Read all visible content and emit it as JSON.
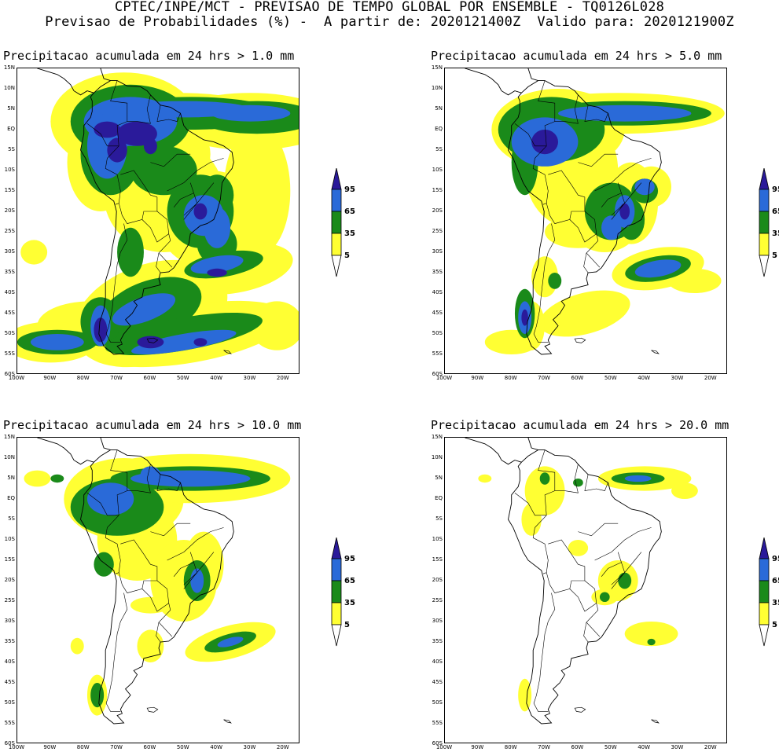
{
  "header": {
    "line1": "CPTEC/INPE/MCT - PREVISAO DE TEMPO GLOBAL POR ENSEMBLE - TQ0126L028",
    "line2": "Previsao de Probabilidades (%) -  A partir de: 2020121400Z  Valido para: 2020121900Z"
  },
  "colors": {
    "p5": "#ffff33",
    "p35": "#1a8a1a",
    "p65": "#2a6ad8",
    "p95": "#2a1a9a",
    "land_outline": "#000000"
  },
  "colorbar": {
    "levels": [
      "5",
      "35",
      "65",
      "95"
    ]
  },
  "axes": {
    "lat_labels": [
      "15N",
      "10N",
      "5N",
      "EQ",
      "5S",
      "10S",
      "15S",
      "20S",
      "25S",
      "30S",
      "35S",
      "40S",
      "45S",
      "50S",
      "55S",
      "60S"
    ],
    "lon_labels": [
      "100W",
      "90W",
      "80W",
      "70W",
      "60W",
      "50W",
      "40W",
      "30W",
      "20W"
    ]
  },
  "panels": [
    {
      "title": "Precipitacao acumulada em 24 hrs > 1.0 mm",
      "threshold_mm": 1.0
    },
    {
      "title": "Precipitacao acumulada em 24 hrs > 5.0 mm",
      "threshold_mm": 5.0
    },
    {
      "title": "Precipitacao acumulada em 24 hrs > 10.0 mm",
      "threshold_mm": 10.0
    },
    {
      "title": "Precipitacao acumulada em 24 hrs > 20.0 mm",
      "threshold_mm": 20.0
    }
  ]
}
